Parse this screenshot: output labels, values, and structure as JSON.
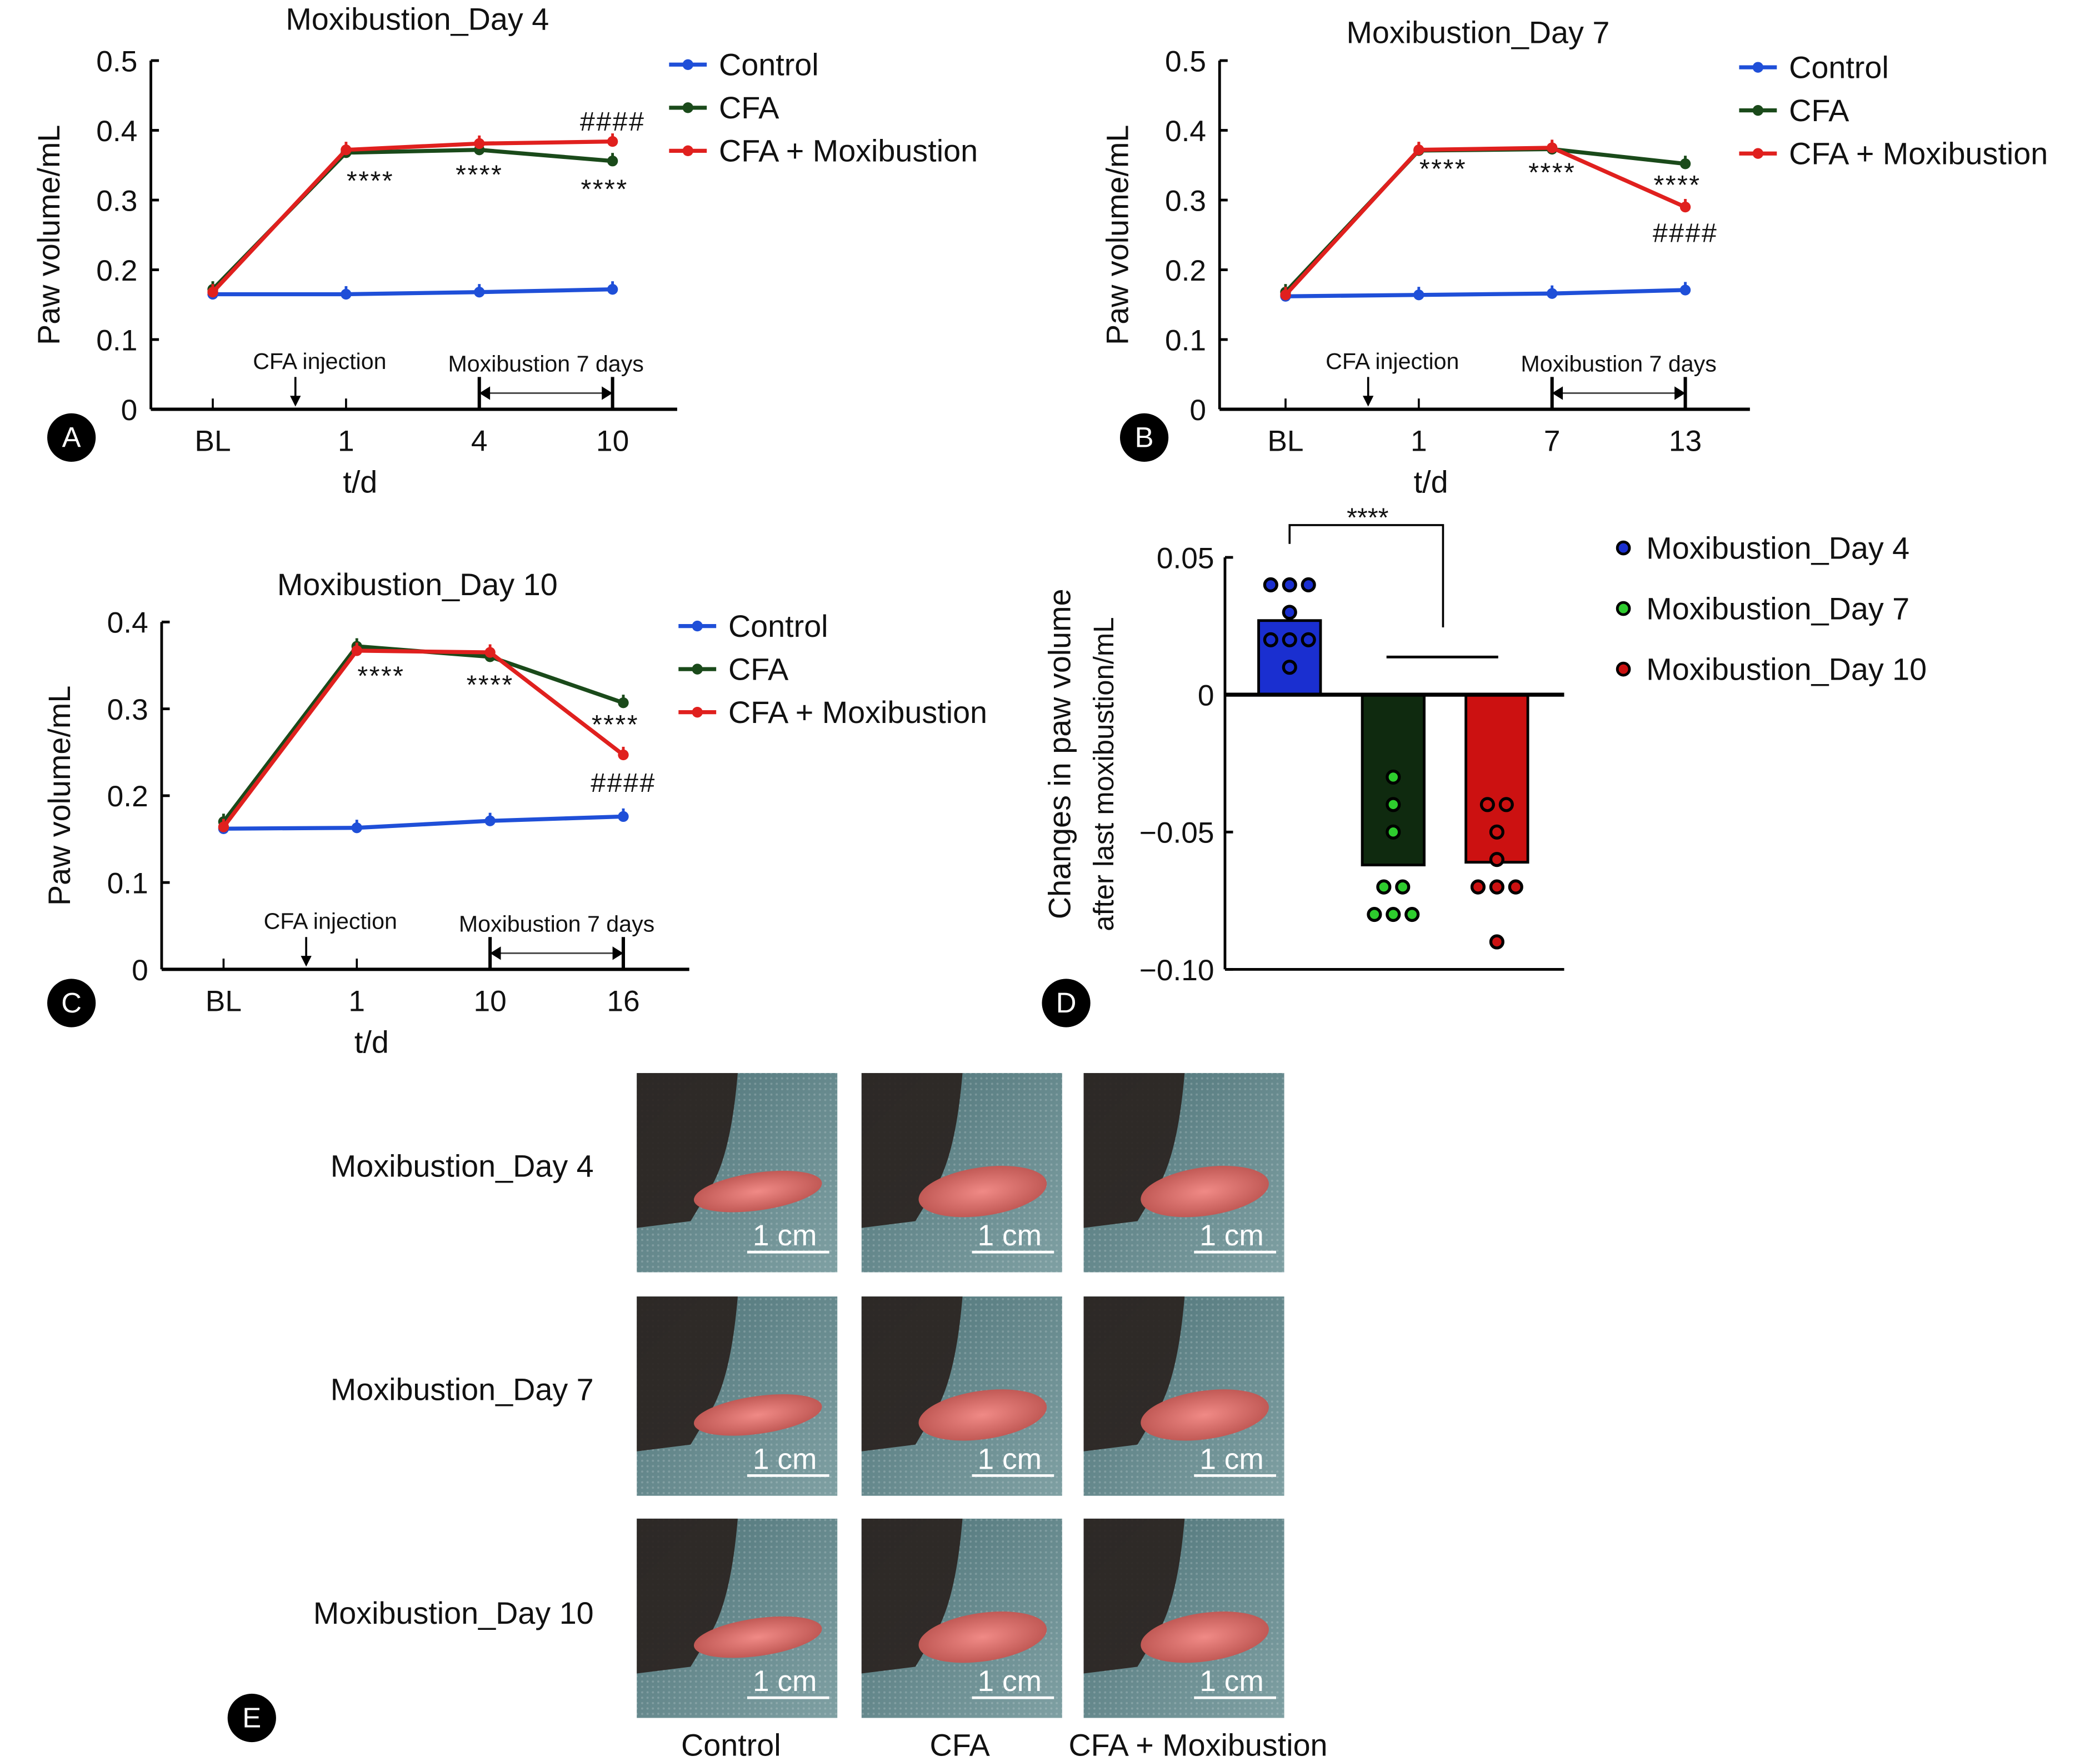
{
  "chart_data": [
    {
      "panel": "A",
      "type": "line",
      "title": "Moxibustion_Day 4",
      "xlabel": "t/d",
      "ylabel": "Paw volume/mL",
      "categories": [
        "BL",
        "1",
        "4",
        "10"
      ],
      "yticks": [
        "0",
        "0.1",
        "0.2",
        "0.3",
        "0.4",
        "0.5"
      ],
      "ylim": [
        0,
        0.5
      ],
      "legend_position": "top-right",
      "series": [
        {
          "name": "Control",
          "color": "#1f4fd8",
          "values": [
            0.165,
            0.165,
            0.168,
            0.172
          ]
        },
        {
          "name": "CFA",
          "color": "#1a4a1a",
          "values": [
            0.172,
            0.368,
            0.372,
            0.356
          ]
        },
        {
          "name": "CFA + Moxibustion",
          "color": "#e0201e",
          "values": [
            0.168,
            0.372,
            0.381,
            0.384
          ]
        }
      ],
      "annotations": {
        "injection": "CFA injection",
        "treatment": "Moxibustion 7 days"
      },
      "significance": [
        {
          "text": "****",
          "x": "1",
          "y": 0.334
        },
        {
          "text": "****",
          "x": "4",
          "y": 0.343
        },
        {
          "text": "****",
          "x": "10",
          "y": 0.322
        },
        {
          "text": "####",
          "x": "10",
          "y": 0.419
        }
      ]
    },
    {
      "panel": "B",
      "type": "line",
      "title": "Moxibustion_Day 7",
      "xlabel": "t/d",
      "ylabel": "Paw volume/mL",
      "categories": [
        "BL",
        "1",
        "7",
        "13"
      ],
      "yticks": [
        "0",
        "0.1",
        "0.2",
        "0.3",
        "0.4",
        "0.5"
      ],
      "ylim": [
        0,
        0.5
      ],
      "legend_position": "top-right",
      "series": [
        {
          "name": "Control",
          "color": "#1f4fd8",
          "values": [
            0.162,
            0.164,
            0.166,
            0.171
          ]
        },
        {
          "name": "CFA",
          "color": "#1a4a1a",
          "values": [
            0.168,
            0.371,
            0.373,
            0.352
          ]
        },
        {
          "name": "CFA + Moxibustion",
          "color": "#e0201e",
          "values": [
            0.164,
            0.372,
            0.375,
            0.29
          ]
        }
      ],
      "annotations": {
        "injection": "CFA injection",
        "treatment": "Moxibustion 7 days"
      },
      "significance": [
        {
          "text": "****",
          "x": "1",
          "y": 0.351
        },
        {
          "text": "****",
          "x": "7",
          "y": 0.346
        },
        {
          "text": "****",
          "x": "13",
          "y": 0.328
        },
        {
          "text": "####",
          "x": "13",
          "y": 0.259
        }
      ]
    },
    {
      "panel": "C",
      "type": "line",
      "title": "Moxibustion_Day 10",
      "xlabel": "t/d",
      "ylabel": "Paw volume/mL",
      "categories": [
        "BL",
        "1",
        "10",
        "16"
      ],
      "yticks": [
        "0",
        "0.1",
        "0.2",
        "0.3",
        "0.4"
      ],
      "ylim": [
        0,
        0.4
      ],
      "legend_position": "top-right",
      "series": [
        {
          "name": "Control",
          "color": "#1f4fd8",
          "values": [
            0.162,
            0.163,
            0.171,
            0.176
          ]
        },
        {
          "name": "CFA",
          "color": "#1a4a1a",
          "values": [
            0.17,
            0.372,
            0.36,
            0.307
          ]
        },
        {
          "name": "CFA + Moxibustion",
          "color": "#e0201e",
          "values": [
            0.164,
            0.367,
            0.365,
            0.247
          ]
        }
      ],
      "annotations": {
        "injection": "CFA injection",
        "treatment": "Moxibustion 7 days"
      },
      "significance": [
        {
          "text": "****",
          "x": "1",
          "y": 0.343
        },
        {
          "text": "****",
          "x": "10",
          "y": 0.333
        },
        {
          "text": "****",
          "x": "16",
          "y": 0.287
        },
        {
          "text": "####",
          "x": "16",
          "y": 0.22
        }
      ]
    },
    {
      "panel": "D",
      "type": "bar",
      "ylabel": "Changes in paw volume",
      "ylabel2": "after last moxibustion/mL",
      "yticks": [
        "0.05",
        "0",
        "−0.05",
        "−0.10"
      ],
      "ylim": [
        -0.1,
        0.05
      ],
      "legend_position": "right",
      "series": [
        {
          "name": "Moxibustion_Day 4",
          "color": "#1a2fd0",
          "dot_color": "#1a2fd0",
          "value": 0.027,
          "points": [
            0.04,
            0.04,
            0.04,
            0.03,
            0.02,
            0.02,
            0.02,
            0.01
          ]
        },
        {
          "name": "Moxibustion_Day 7",
          "color": "#0f2a0f",
          "dot_color": "#2ecc2e",
          "value": -0.062,
          "points": [
            -0.03,
            -0.04,
            -0.05,
            -0.07,
            -0.07,
            -0.08,
            -0.08,
            -0.08
          ]
        },
        {
          "name": "Moxibustion_Day 10",
          "color": "#cc1111",
          "dot_color": "#cc1111",
          "value": -0.061,
          "points": [
            -0.04,
            -0.04,
            -0.05,
            -0.06,
            -0.07,
            -0.07,
            -0.07,
            -0.09
          ]
        }
      ],
      "significance": [
        {
          "text": "****"
        }
      ]
    }
  ],
  "panel_e": {
    "rows": [
      "Moxibustion_Day 4",
      "Moxibustion_Day 7",
      "Moxibustion_Day 10"
    ],
    "columns": [
      "Control",
      "CFA",
      "CFA + Moxibustion"
    ],
    "scale_bar": "1 cm"
  },
  "panel_labels": [
    "A",
    "B",
    "C",
    "D",
    "E"
  ]
}
